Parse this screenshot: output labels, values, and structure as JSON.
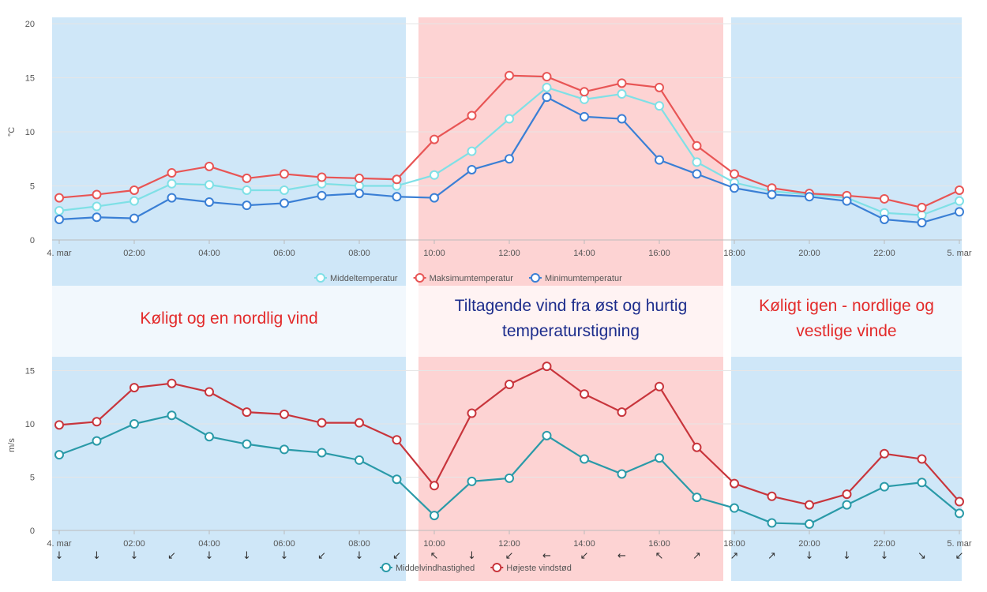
{
  "colors": {
    "cool_band": "#cfe7f8",
    "warm_band": "#fdd3d3",
    "mean_temp": "#7fe0e6",
    "max_temp": "#e85555",
    "min_temp": "#3a7fd5",
    "mean_wind": "#2a9aa8",
    "gust": "#c8353c",
    "annotation_red": "#e32b2b",
    "annotation_blue": "#1d2d8c"
  },
  "annotations": {
    "left": "Køligt og en nordlig vind",
    "middle": "Tiltagende vind fra øst og hurtig temperaturstigning",
    "right": "Køligt igen - nordlige og vestlige vinde"
  },
  "chart_data": [
    {
      "type": "line",
      "ylabel": "°C",
      "ylim": [
        0,
        20
      ],
      "yticks": [
        "0",
        "5",
        "10",
        "15",
        "20"
      ],
      "x_tick_labels": [
        "4. mar",
        "02:00",
        "04:00",
        "06:00",
        "08:00",
        "10:00",
        "12:00",
        "14:00",
        "16:00",
        "18:00",
        "20:00",
        "22:00",
        "5. mar"
      ],
      "x_hours": [
        0,
        2,
        4,
        6,
        8,
        10,
        12,
        14,
        16,
        18,
        20,
        22,
        24
      ],
      "series": [
        {
          "name": "Middeltemperatur",
          "x": [
            0,
            1,
            2,
            3,
            4,
            5,
            6,
            7,
            8,
            9,
            10,
            11,
            12,
            13,
            14,
            15,
            16,
            17,
            18,
            19,
            20,
            21,
            22,
            23,
            24
          ],
          "values": [
            2.7,
            3.1,
            3.6,
            5.2,
            5.1,
            4.6,
            4.6,
            5.2,
            5.0,
            5.0,
            6.0,
            8.2,
            11.2,
            14.1,
            13.0,
            13.5,
            12.4,
            7.2,
            5.3,
            4.5,
            4.2,
            3.9,
            2.5,
            2.3,
            3.6
          ]
        },
        {
          "name": "Maksimumtemperatur",
          "x": [
            0,
            1,
            2,
            3,
            4,
            5,
            6,
            7,
            8,
            9,
            10,
            11,
            12,
            13,
            14,
            15,
            16,
            17,
            18,
            19,
            20,
            21,
            22,
            23,
            24
          ],
          "values": [
            3.9,
            4.2,
            4.6,
            6.2,
            6.8,
            5.7,
            6.1,
            5.8,
            5.7,
            5.6,
            9.3,
            11.5,
            15.2,
            15.1,
            13.7,
            14.5,
            14.1,
            8.7,
            6.1,
            4.8,
            4.3,
            4.1,
            3.8,
            3.0,
            4.6
          ]
        },
        {
          "name": "Minimumtemperatur",
          "x": [
            0,
            1,
            2,
            3,
            4,
            5,
            6,
            7,
            8,
            9,
            10,
            11,
            12,
            13,
            14,
            15,
            16,
            17,
            18,
            19,
            20,
            21,
            22,
            23,
            24
          ],
          "values": [
            1.9,
            2.1,
            2.0,
            3.9,
            3.5,
            3.2,
            3.4,
            4.1,
            4.3,
            4.0,
            3.9,
            6.5,
            7.5,
            13.2,
            11.4,
            11.2,
            7.4,
            6.1,
            4.8,
            4.2,
            4.0,
            3.6,
            1.9,
            1.6,
            2.6
          ]
        }
      ]
    },
    {
      "type": "line",
      "ylabel": "m/s",
      "ylim": [
        0,
        16
      ],
      "yticks": [
        "0",
        "5",
        "10",
        "15"
      ],
      "x_tick_labels": [
        "4. mar",
        "02:00",
        "04:00",
        "06:00",
        "08:00",
        "10:00",
        "12:00",
        "14:00",
        "16:00",
        "18:00",
        "20:00",
        "22:00",
        "5. mar"
      ],
      "x_hours": [
        0,
        2,
        4,
        6,
        8,
        10,
        12,
        14,
        16,
        18,
        20,
        22,
        24
      ],
      "series": [
        {
          "name": "Middelvindhastighed",
          "x": [
            0,
            1,
            2,
            3,
            4,
            5,
            6,
            7,
            8,
            9,
            10,
            11,
            12,
            13,
            14,
            15,
            16,
            17,
            18,
            19,
            20,
            21,
            22,
            23,
            24
          ],
          "values": [
            7.1,
            8.4,
            10.0,
            10.8,
            8.8,
            8.1,
            7.6,
            7.3,
            6.6,
            4.8,
            1.4,
            4.6,
            4.9,
            8.9,
            6.7,
            5.3,
            6.8,
            3.1,
            2.1,
            0.7,
            0.6,
            2.4,
            4.1,
            4.5,
            1.6
          ]
        },
        {
          "name": "Højeste vindstød",
          "x": [
            0,
            1,
            2,
            3,
            4,
            5,
            6,
            7,
            8,
            9,
            10,
            11,
            12,
            13,
            14,
            15,
            16,
            17,
            18,
            19,
            20,
            21,
            22,
            23,
            24
          ],
          "values": [
            9.9,
            10.2,
            13.4,
            13.8,
            13.0,
            11.1,
            10.9,
            10.1,
            10.1,
            8.5,
            4.2,
            11.0,
            13.7,
            15.4,
            12.8,
            11.1,
            13.5,
            7.8,
            4.4,
            3.2,
            2.4,
            3.4,
            7.2,
            6.7,
            2.7
          ]
        }
      ],
      "wind_direction_arrows": [
        "↓",
        "↓",
        "↓",
        "↙",
        "↓",
        "↓",
        "↓",
        "↙",
        "↓",
        "↙",
        "↖",
        "↓",
        "↙",
        "←",
        "↙",
        "←",
        "↖",
        "↗",
        "↗",
        "↗",
        "↓",
        "↓",
        "↓",
        "↘",
        "↙"
      ]
    }
  ]
}
